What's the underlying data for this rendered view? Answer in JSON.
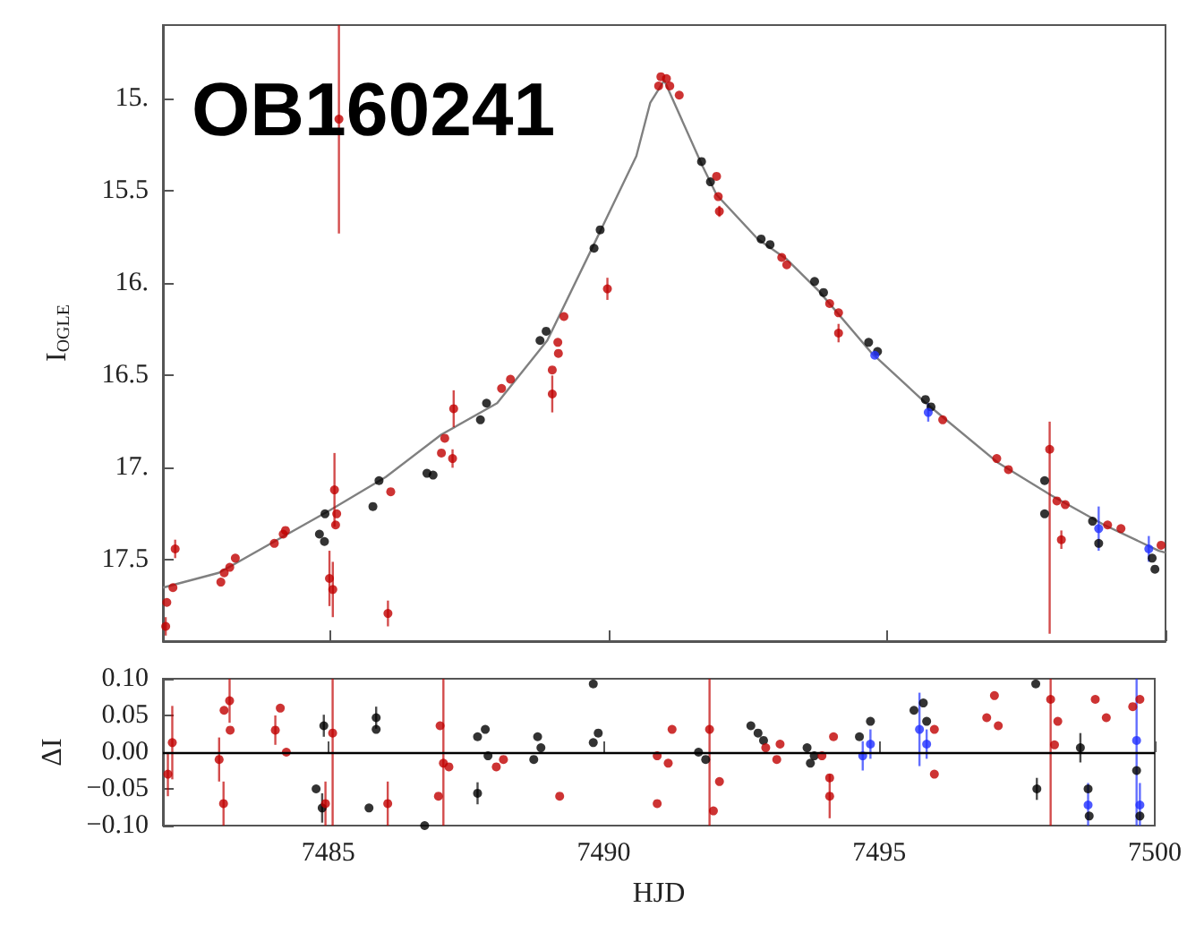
{
  "chart_data": [
    {
      "type": "scatter",
      "ylabel": "I$_{OGLE}$",
      "annotations": [
        "OB160241"
      ],
      "marker": "circle",
      "tick_labels": "y",
      "xlim": [
        7482,
        7500
      ],
      "xticks": [
        7485,
        7490,
        7495,
        7500
      ],
      "ylim": [
        17.94,
        14.6
      ],
      "yticks": [
        {
          "value": 15,
          "label": "15."
        },
        15.5,
        {
          "value": 16,
          "label": "16."
        },
        16.5,
        {
          "value": 17,
          "label": "17."
        },
        17.5
      ],
      "series": [
        {
          "type": "line",
          "color": "#808080",
          "line_style": "solid",
          "marker": "none",
          "x": [
            7482,
            7483,
            7484,
            7485,
            7486,
            7487,
            7488,
            7488.9,
            7489.8,
            7490.5,
            7490.75,
            7491,
            7491.68,
            7491.94,
            7492.68,
            7493.2,
            7493.77,
            7494.73,
            7495.7,
            7496.98,
            7497.95,
            7498.9,
            7499.88,
            7500
          ],
          "values": [
            17.65,
            17.57,
            17.4,
            17.23,
            17.05,
            16.82,
            16.65,
            16.31,
            15.75,
            15.31,
            15.02,
            14.9,
            15.36,
            15.52,
            15.76,
            15.87,
            16.04,
            16.38,
            16.65,
            16.97,
            17.15,
            17.31,
            17.45,
            17.46
          ]
        },
        {
          "color": "#000000",
          "x": [
            7484.81,
            7484.9,
            7484.91,
            7485.77,
            7485.88,
            7486.74,
            7486.85,
            7487.7,
            7487.81,
            7488.77,
            7488.88,
            7489.74,
            7489.85,
            7491.67,
            7491.83,
            7492.74,
            7492.9,
            7493.7,
            7493.86,
            7494.67,
            7494.83,
            7495.69,
            7495.79,
            7497.83,
            7497.83,
            7498.69,
            7498.8,
            7499.76,
            7499.81
          ],
          "values": [
            17.36,
            17.4,
            17.25,
            17.21,
            17.07,
            17.03,
            17.04,
            16.74,
            16.65,
            16.31,
            16.26,
            15.81,
            15.71,
            15.34,
            15.45,
            15.76,
            15.79,
            15.99,
            16.05,
            16.32,
            16.37,
            16.63,
            16.67,
            17.07,
            17.25,
            17.29,
            17.41,
            17.49,
            17.55
          ]
        },
        {
          "color": "#c00000",
          "x": [
            7482.05,
            7482.07,
            7482.18,
            7482.22,
            7483.04,
            7483.1,
            7483.2,
            7483.3,
            7484.0,
            7484.16,
            7484.2,
            7484.99,
            7485.05,
            7485.08,
            7485.1,
            7485.12,
            7485.16,
            7486.04,
            7486.09,
            7487.0,
            7487.06,
            7487.2,
            7487.22,
            7488.08,
            7488.24,
            7488.99,
            7488.99,
            7489.09,
            7489.1,
            7489.2,
            7489.98,
            7490.94,
            7491.04,
            7490.9,
            7491.1,
            7491.27,
            7491.94,
            7491.97,
            7491.99,
            7493.11,
            7493.2,
            7493.97,
            7494.13,
            7494.13,
            7496.0,
            7496.97,
            7497.18,
            7497.92,
            7498.05,
            7498.13,
            7498.2,
            7498.96,
            7499.2,
            7499.92
          ],
          "values": [
            17.86,
            17.73,
            17.65,
            17.44,
            17.62,
            17.57,
            17.54,
            17.49,
            17.41,
            17.36,
            17.34,
            17.6,
            17.66,
            17.12,
            17.31,
            17.25,
            15.11,
            17.79,
            17.13,
            16.92,
            16.84,
            16.95,
            16.68,
            16.57,
            16.52,
            16.47,
            16.6,
            16.32,
            16.38,
            16.18,
            16.03,
            14.88,
            14.89,
            14.93,
            14.93,
            14.98,
            15.42,
            15.53,
            15.61,
            15.86,
            15.9,
            16.11,
            16.16,
            16.27,
            16.74,
            16.95,
            17.01,
            16.9,
            17.18,
            17.39,
            17.2,
            17.31,
            17.33,
            17.42
          ],
          "errors": [
            0.05,
            null,
            null,
            0.05,
            null,
            null,
            null,
            null,
            null,
            null,
            null,
            0.15,
            0.15,
            0.2,
            null,
            null,
            [
              14.6,
              15.73
            ],
            0.07,
            null,
            null,
            null,
            0.05,
            0.1,
            null,
            null,
            null,
            0.1,
            null,
            null,
            null,
            0.06,
            null,
            null,
            null,
            null,
            null,
            null,
            null,
            0.03,
            null,
            null,
            null,
            null,
            0.05,
            null,
            null,
            null,
            [
              16.75,
              17.9
            ],
            null,
            0.05,
            null,
            null,
            null,
            null
          ]
        },
        {
          "color": "#2030ff",
          "x": [
            7494.78,
            7495.74,
            7498.8,
            7499.7
          ],
          "values": [
            16.39,
            16.7,
            17.33,
            17.44
          ],
          "errors": [
            null,
            0.05,
            0.12,
            0.07
          ]
        }
      ]
    },
    {
      "type": "scatter",
      "xlabel": "HJD",
      "ylabel": "ΔI",
      "marker": "circle",
      "xlim": [
        7482,
        7500
      ],
      "xticks": [
        7485,
        7490,
        7495,
        7500
      ],
      "ylim": [
        -0.1,
        0.1
      ],
      "yticks": [
        {
          "value": -0.1,
          "label": "−0.10"
        },
        {
          "value": -0.05,
          "label": "−0.05"
        },
        {
          "value": 0,
          "label": "0.00"
        },
        {
          "value": 0.05,
          "label": "0.05"
        },
        {
          "value": 0.1,
          "label": "0.10"
        }
      ],
      "ref_lines": [
        {
          "axis": "y",
          "value": 0,
          "color": "#000000"
        }
      ],
      "series": [
        {
          "color": "#000000",
          "x": [
            7484.92,
            7484.78,
            7484.89,
            7485.74,
            7485.87,
            7485.87,
            7486.75,
            7487.71,
            7487.71,
            7487.85,
            7487.9,
            7488.73,
            7488.8,
            7488.86,
            7489.81,
            7489.81,
            7489.9,
            7491.72,
            7491.85,
            7492.67,
            7492.8,
            7492.9,
            7493.69,
            7493.75,
            7493.82,
            7494.64,
            7494.84,
            7495.63,
            7495.8,
            7495.86,
            7497.84,
            7497.86,
            7498.65,
            7498.79,
            7498.81,
            7499.67,
            7499.73
          ],
          "values": [
            0.036,
            -0.05,
            -0.076,
            -0.076,
            0.047,
            0.031,
            -0.1,
            0.021,
            -0.056,
            0.031,
            -0.005,
            -0.01,
            0.021,
            0.006,
            0.093,
            0.013,
            0.026,
            0,
            -0.01,
            0.036,
            0.026,
            0.016,
            0.006,
            -0.015,
            -0.005,
            0.021,
            0.042,
            0.057,
            0.067,
            0.042,
            0.093,
            -0.05,
            0.006,
            -0.05,
            -0.087,
            -0.025,
            -0.087
          ],
          "errors": [
            0.015,
            null,
            0.02,
            null,
            0.015,
            null,
            null,
            null,
            0.015,
            null,
            null,
            null,
            null,
            null,
            null,
            null,
            null,
            null,
            null,
            null,
            null,
            null,
            null,
            null,
            null,
            null,
            null,
            null,
            null,
            null,
            null,
            0.015,
            0.02,
            null,
            null,
            null,
            null
          ]
        },
        {
          "color": "#c00000",
          "x": [
            7482.09,
            7482.17,
            7483.02,
            7483.11,
            7483.21,
            7483.1,
            7483.22,
            7484.04,
            7484.13,
            7484.24,
            7485.08,
            7484.95,
            7486.08,
            7487.03,
            7487.0,
            7487.09,
            7487.19,
            7488.05,
            7488.18,
            7489.2,
            7490.97,
            7490.97,
            7491.17,
            7491.24,
            7491.92,
            7491.99,
            7492.1,
            7492.94,
            7493.14,
            7493.2,
            7493.96,
            7494.1,
            7494.1,
            7494.17,
            7496.0,
            7496.0,
            7496.95,
            7497.09,
            7497.16,
            7498.11,
            7498.18,
            7498.24,
            7498.92,
            7499.12,
            7499.6,
            7499.73
          ],
          "values": [
            -0.03,
            0.013,
            -0.01,
            0.057,
            0.07,
            -0.07,
            0.03,
            0.03,
            0.06,
            0,
            0.026,
            -0.07,
            -0.07,
            0.036,
            -0.06,
            -0.015,
            -0.02,
            -0.02,
            -0.01,
            -0.06,
            -0.005,
            -0.07,
            -0.015,
            0.031,
            0.031,
            -0.08,
            -0.04,
            0.006,
            -0.01,
            0.011,
            -0.005,
            -0.035,
            -0.06,
            0.021,
            -0.03,
            0.031,
            0.047,
            0.077,
            0.036,
            0.072,
            0.01,
            0.042,
            0.072,
            0.047,
            0.062,
            0.072
          ],
          "errors": [
            0.03,
            0.05,
            0.03,
            null,
            0.03,
            0.03,
            null,
            0.02,
            null,
            null,
            [
              -0.1,
              0.1
            ],
            0.03,
            0.03,
            null,
            null,
            [
              -0.1,
              0.1
            ],
            null,
            null,
            null,
            null,
            null,
            null,
            null,
            null,
            [
              -0.1,
              0.1
            ],
            null,
            null,
            null,
            null,
            null,
            null,
            null,
            0.03,
            null,
            null,
            null,
            null,
            null,
            null,
            [
              -0.1,
              0.1
            ],
            null,
            null,
            null,
            null,
            null,
            null
          ]
        },
        {
          "color": "#2030ff",
          "x": [
            7494.7,
            7494.84,
            7495.73,
            7495.86,
            7498.79,
            7499.67,
            7499.73
          ],
          "values": [
            -0.005,
            0.011,
            0.031,
            0.011,
            -0.072,
            0.016,
            -0.072
          ],
          "errors": [
            0.02,
            0.02,
            0.05,
            0.02,
            0.03,
            [
              -0.1,
              0.1
            ],
            0.03
          ]
        }
      ]
    }
  ]
}
